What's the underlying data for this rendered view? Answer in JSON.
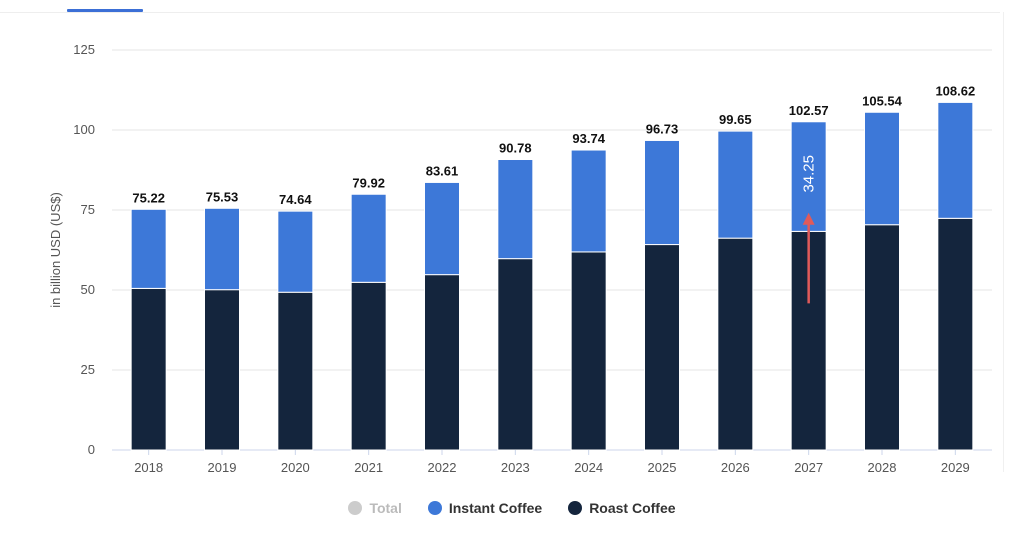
{
  "chart_data": {
    "type": "bar",
    "stacked": true,
    "title": "",
    "xlabel": "",
    "ylabel": "in billion USD (US$)",
    "ylim": [
      0,
      125
    ],
    "yticks": [
      0,
      25,
      50,
      75,
      100,
      125
    ],
    "grid": true,
    "legend_position": "bottom-center",
    "categories": [
      "2018",
      "2019",
      "2020",
      "2021",
      "2022",
      "2023",
      "2024",
      "2025",
      "2026",
      "2027",
      "2028",
      "2029"
    ],
    "totals": [
      75.22,
      75.53,
      74.64,
      79.92,
      83.61,
      90.78,
      93.74,
      96.73,
      99.65,
      102.57,
      105.54,
      108.62
    ],
    "series": [
      {
        "name": "Roast Coffee",
        "color": "#14253d",
        "values": [
          50.5,
          50.1,
          49.3,
          52.4,
          54.8,
          59.8,
          61.9,
          64.2,
          66.2,
          68.32,
          70.4,
          72.4
        ]
      },
      {
        "name": "Instant Coffee",
        "color": "#3d78d8",
        "values": [
          24.72,
          25.43,
          25.34,
          27.52,
          28.81,
          30.98,
          31.84,
          32.53,
          33.45,
          34.25,
          35.14,
          36.22
        ]
      }
    ],
    "annotations": [
      {
        "category": "2027",
        "series": "Instant Coffee",
        "text": "34.25"
      }
    ]
  },
  "legend": {
    "items": [
      {
        "label": "Total",
        "color": "#cccccc",
        "text_color": "#bbbbbb"
      },
      {
        "label": "Instant Coffee",
        "color": "#3d78d8",
        "text_color": "#333333"
      },
      {
        "label": "Roast Coffee",
        "color": "#14253d",
        "text_color": "#333333"
      }
    ]
  },
  "colors": {
    "grid": "#e6e6e6",
    "baseline": "#ccd6eb",
    "arrow": "#e05a5a",
    "tab_indicator": "#3b6fd6"
  }
}
